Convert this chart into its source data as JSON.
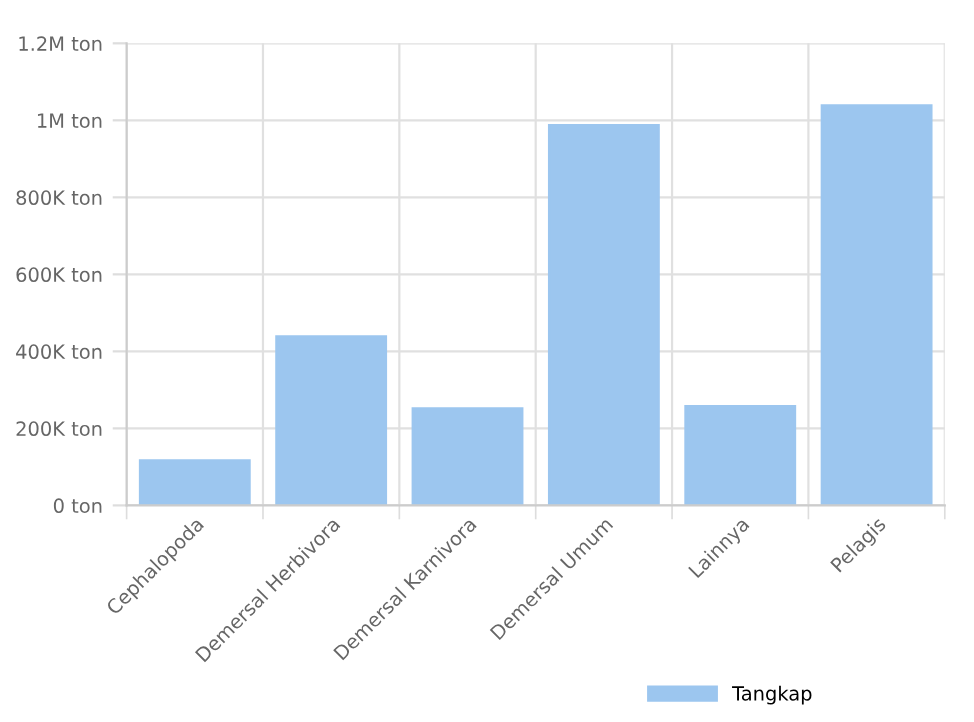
{
  "chart_data": {
    "type": "bar",
    "categories": [
      "Cephalopoda",
      "Demersal Herbivora",
      "Demersal Karnivora",
      "Demersal Umum",
      "Lainnya",
      "Pelagis"
    ],
    "series": [
      {
        "name": "Tangkap",
        "color": "#9cc6ef",
        "values": [
          116000,
          438000,
          251000,
          987000,
          257000,
          1038000
        ]
      }
    ],
    "ylim": [
      0,
      1200000
    ],
    "yticks": [
      {
        "value": 0,
        "label": "0 ton"
      },
      {
        "value": 200000,
        "label": "200K ton"
      },
      {
        "value": 400000,
        "label": "400K ton"
      },
      {
        "value": 600000,
        "label": "600K ton"
      },
      {
        "value": 800000,
        "label": "800K ton"
      },
      {
        "value": 1000000,
        "label": "1M ton"
      },
      {
        "value": 1200000,
        "label": "1.2M ton"
      }
    ],
    "grid": true,
    "legend": "bottom"
  }
}
